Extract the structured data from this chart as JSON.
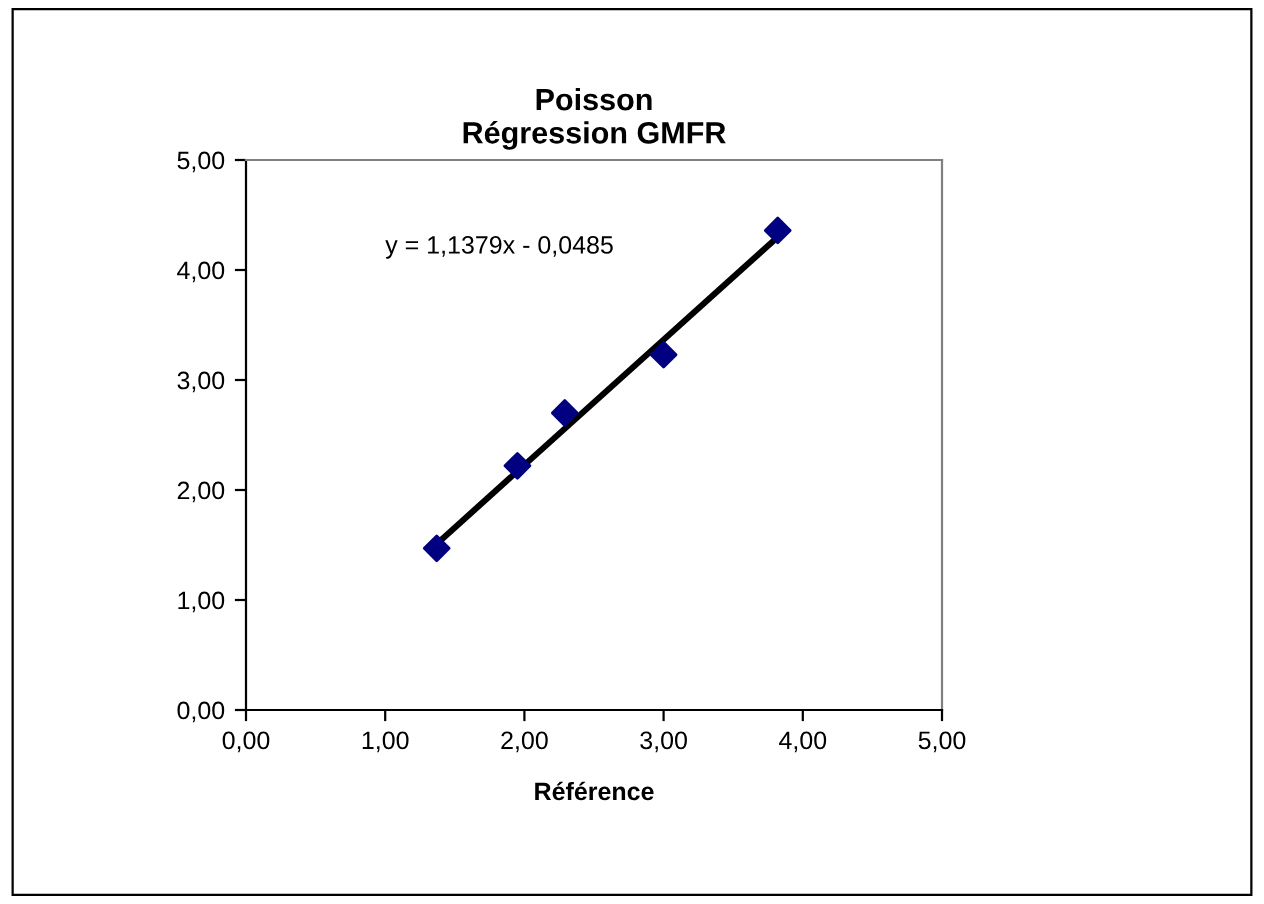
{
  "chart_data": {
    "type": "scatter",
    "title": "Poisson\nRégression GMFR",
    "xlabel": "Référence",
    "series": [
      {
        "color": "#000080",
        "marker": "diamond",
        "x": [
          1.37,
          1.95,
          2.29,
          3.0,
          3.82
        ],
        "values": [
          1.47,
          2.22,
          2.7,
          3.23,
          4.36
        ]
      },
      {
        "type": "line",
        "color": "#000000",
        "marker": "none",
        "x": [
          1.37,
          3.82
        ],
        "values": [
          1.51,
          4.3
        ]
      }
    ],
    "annotations": [
      "y = 1,1379x - 0,0485"
    ],
    "xlim": [
      0,
      5
    ],
    "ylim": [
      0,
      5
    ],
    "xticks": [
      {
        "value": 0,
        "label": "0,00"
      },
      {
        "value": 1,
        "label": "1,00"
      },
      {
        "value": 2,
        "label": "2,00"
      },
      {
        "value": 3,
        "label": "3,00"
      },
      {
        "value": 4,
        "label": "4,00"
      },
      {
        "value": 5,
        "label": "5,00"
      }
    ],
    "yticks": [
      {
        "value": 0,
        "label": "0,00"
      },
      {
        "value": 1,
        "label": "1,00"
      },
      {
        "value": 2,
        "label": "2,00"
      },
      {
        "value": 3,
        "label": "3,00"
      },
      {
        "value": 4,
        "label": "4,00"
      },
      {
        "value": 5,
        "label": "5,00"
      }
    ],
    "grid": false,
    "legend": false
  }
}
